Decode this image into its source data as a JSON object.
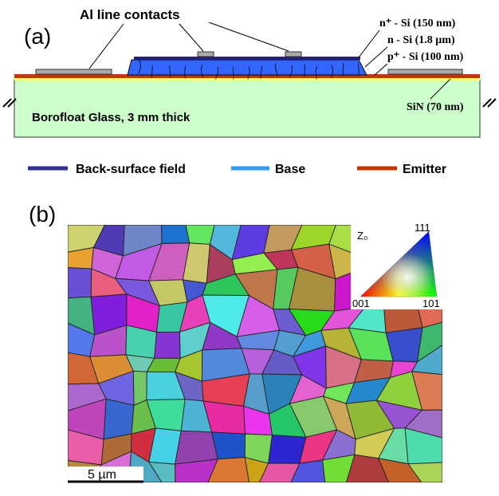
{
  "panel_a": {
    "label": "(a)",
    "contacts_label": "Al line contacts",
    "layers": [
      "n⁺ - Si (150 nm)",
      "n - Si (1.8 µm)",
      "p⁺ - Si (100 nm)"
    ],
    "sin_label": "SiN (70 nm)",
    "glass_label": "Borofloat Glass, 3 mm thick",
    "legend": [
      "Back-surface field",
      "Base",
      "Emitter"
    ]
  },
  "panel_b": {
    "label": "(b)",
    "axis_label": "Z₀",
    "corners": [
      "111",
      "001",
      "101"
    ],
    "scale_bar": "5 µm"
  }
}
